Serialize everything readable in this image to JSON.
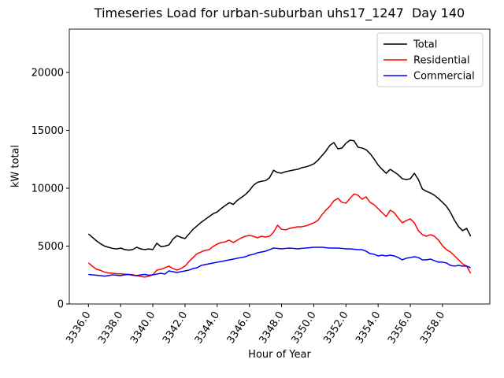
{
  "chart_data": {
    "type": "line",
    "title": "Timeseries Load for urban-suburban uhs17_1247  Day 140",
    "xlabel": "Hour of Year",
    "ylabel": "kW total",
    "xlim": [
      3334.81,
      3360.94
    ],
    "ylim": [
      0,
      23740
    ],
    "grid": false,
    "legend_position": "upper right",
    "xticks": {
      "values": [
        3336,
        3338,
        3340,
        3342,
        3344,
        3346,
        3348,
        3350,
        3352,
        3354,
        3356,
        3358
      ],
      "labels": [
        "3336.0",
        "3338.0",
        "3340.0",
        "3342.0",
        "3344.0",
        "3346.0",
        "3348.0",
        "3350.0",
        "3352.0",
        "3354.0",
        "3356.0",
        "3358.0"
      ]
    },
    "yticks": {
      "values": [
        0,
        5000,
        10000,
        15000,
        20000
      ],
      "labels": [
        "0",
        "5000",
        "10000",
        "15000",
        "20000"
      ]
    },
    "x": [
      3336.0,
      3336.25,
      3336.5,
      3336.75,
      3337.0,
      3337.25,
      3337.5,
      3337.75,
      3338.0,
      3338.25,
      3338.5,
      3338.75,
      3339.0,
      3339.25,
      3339.5,
      3339.75,
      3340.0,
      3340.25,
      3340.5,
      3340.75,
      3341.0,
      3341.25,
      3341.5,
      3341.75,
      3342.0,
      3342.25,
      3342.5,
      3342.75,
      3343.0,
      3343.25,
      3343.5,
      3343.75,
      3344.0,
      3344.25,
      3344.5,
      3344.75,
      3345.0,
      3345.25,
      3345.5,
      3345.75,
      3346.0,
      3346.25,
      3346.5,
      3346.75,
      3347.0,
      3347.25,
      3347.5,
      3347.75,
      3348.0,
      3348.25,
      3348.5,
      3348.75,
      3349.0,
      3349.25,
      3349.5,
      3349.75,
      3350.0,
      3350.25,
      3350.5,
      3350.75,
      3351.0,
      3351.25,
      3351.5,
      3351.75,
      3352.0,
      3352.25,
      3352.5,
      3352.75,
      3353.0,
      3353.25,
      3353.5,
      3353.75,
      3354.0,
      3354.25,
      3354.5,
      3354.75,
      3355.0,
      3355.25,
      3355.5,
      3355.75,
      3356.0,
      3356.25,
      3356.5,
      3356.75,
      3357.0,
      3357.25,
      3357.5,
      3357.75,
      3358.0,
      3358.25,
      3358.5,
      3358.75,
      3359.0,
      3359.25,
      3359.5,
      3359.75
    ],
    "series": [
      {
        "name": "Total",
        "color": "#000000",
        "values": [
          6050,
          5750,
          5450,
          5200,
          5000,
          4900,
          4800,
          4750,
          4830,
          4700,
          4650,
          4700,
          4900,
          4750,
          4700,
          4750,
          4700,
          5250,
          4950,
          5000,
          5100,
          5600,
          5900,
          5750,
          5650,
          6050,
          6450,
          6750,
          7050,
          7300,
          7550,
          7800,
          7950,
          8250,
          8500,
          8750,
          8600,
          8950,
          9200,
          9450,
          9800,
          10250,
          10500,
          10600,
          10650,
          10900,
          11550,
          11350,
          11300,
          11430,
          11500,
          11570,
          11630,
          11770,
          11840,
          11950,
          12100,
          12400,
          12800,
          13200,
          13700,
          13940,
          13400,
          13470,
          13880,
          14150,
          14100,
          13540,
          13470,
          13330,
          12990,
          12520,
          12000,
          11630,
          11290,
          11630,
          11400,
          11160,
          10820,
          10750,
          10820,
          11290,
          10750,
          9930,
          9730,
          9590,
          9390,
          9110,
          8780,
          8430,
          7890,
          7210,
          6670,
          6330,
          6530,
          5850
        ]
      },
      {
        "name": "Residential",
        "color": "#ff0000",
        "values": [
          3550,
          3250,
          3000,
          2900,
          2750,
          2680,
          2650,
          2620,
          2600,
          2580,
          2550,
          2530,
          2450,
          2380,
          2320,
          2400,
          2520,
          2930,
          2990,
          3130,
          3270,
          3060,
          2930,
          3060,
          3270,
          3670,
          4010,
          4350,
          4490,
          4630,
          4690,
          4970,
          5170,
          5310,
          5370,
          5510,
          5310,
          5510,
          5710,
          5850,
          5920,
          5850,
          5710,
          5850,
          5780,
          5850,
          6200,
          6800,
          6450,
          6400,
          6530,
          6600,
          6670,
          6670,
          6740,
          6870,
          7010,
          7210,
          7690,
          8100,
          8440,
          8910,
          9120,
          8780,
          8710,
          9120,
          9500,
          9390,
          9050,
          9250,
          8780,
          8570,
          8230,
          7890,
          7550,
          8100,
          7890,
          7420,
          7010,
          7210,
          7350,
          7010,
          6330,
          5990,
          5850,
          5990,
          5850,
          5510,
          5030,
          4690,
          4490,
          4150,
          3810,
          3470,
          3270,
          2650
        ]
      },
      {
        "name": "Commercial",
        "color": "#0000ff",
        "values": [
          2550,
          2520,
          2480,
          2450,
          2410,
          2450,
          2520,
          2480,
          2450,
          2520,
          2550,
          2480,
          2450,
          2520,
          2550,
          2480,
          2520,
          2580,
          2650,
          2580,
          2860,
          2790,
          2720,
          2790,
          2860,
          2930,
          3060,
          3130,
          3330,
          3400,
          3470,
          3540,
          3610,
          3670,
          3740,
          3810,
          3880,
          3950,
          4010,
          4080,
          4220,
          4290,
          4420,
          4490,
          4560,
          4690,
          4830,
          4800,
          4760,
          4800,
          4830,
          4800,
          4760,
          4800,
          4830,
          4860,
          4900,
          4900,
          4900,
          4860,
          4830,
          4830,
          4830,
          4800,
          4760,
          4760,
          4730,
          4690,
          4690,
          4560,
          4350,
          4290,
          4150,
          4220,
          4150,
          4220,
          4150,
          4010,
          3810,
          3950,
          4010,
          4080,
          4010,
          3810,
          3810,
          3880,
          3740,
          3610,
          3610,
          3540,
          3330,
          3270,
          3330,
          3270,
          3270,
          3130
        ]
      }
    ]
  }
}
